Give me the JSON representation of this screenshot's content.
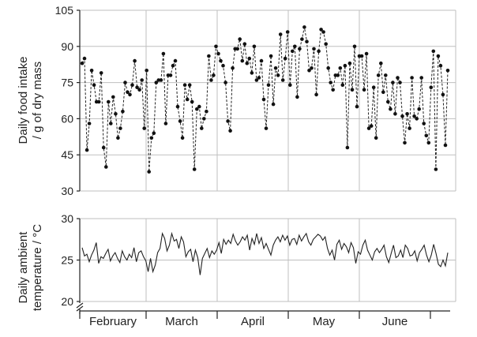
{
  "chart_data": [
    {
      "type": "line",
      "title": "",
      "ylabel_lines": [
        "Daily food intake",
        "/ g of dry mass"
      ],
      "ylim": [
        30,
        105
      ],
      "yticks": [
        30,
        45,
        60,
        75,
        90,
        105
      ],
      "grid": true,
      "series": [
        {
          "line_style": "dashed",
          "markers": "filled-circle",
          "values": [
            83,
            85,
            47,
            58,
            80,
            74,
            67,
            67,
            79,
            48,
            40,
            67,
            58,
            69,
            62,
            52,
            56,
            63,
            75,
            71,
            70,
            74,
            84,
            73,
            72,
            76,
            56,
            80,
            38,
            52,
            54,
            75,
            76,
            76,
            87,
            58,
            78,
            78,
            82,
            84,
            65,
            59,
            52,
            74,
            68,
            74,
            67,
            39,
            64,
            65,
            56,
            60,
            63,
            86,
            76,
            78,
            90,
            87,
            84,
            82,
            75,
            59,
            55,
            81,
            89,
            89,
            93,
            84,
            91,
            83,
            85,
            79,
            90,
            76,
            77,
            84,
            68,
            56,
            74,
            86,
            66,
            81,
            78,
            95,
            76,
            85,
            96,
            74,
            88,
            90,
            69,
            89,
            93,
            98,
            92,
            80,
            81,
            89,
            70,
            88,
            97,
            96,
            91,
            81,
            75,
            72,
            78,
            78,
            81,
            74,
            82,
            48,
            83,
            72,
            90,
            65,
            86,
            86,
            72,
            87,
            56,
            57,
            73,
            52,
            78,
            83,
            71,
            78,
            67,
            64,
            75,
            62,
            77,
            75,
            61,
            50,
            62,
            56,
            77,
            61,
            60,
            64,
            77,
            58,
            53,
            50,
            73,
            88,
            39,
            86,
            82,
            70,
            49,
            80
          ]
        }
      ]
    },
    {
      "type": "line",
      "title": "",
      "ylabel_lines": [
        "Daily ambient",
        "temperature  / °C"
      ],
      "ylim": [
        20,
        30
      ],
      "yticks": [
        20,
        25,
        30
      ],
      "axis_break": true,
      "grid": true,
      "series": [
        {
          "line_style": "solid",
          "markers": "none",
          "values": [
            26.5,
            25.5,
            25.7,
            24.8,
            25.6,
            26.2,
            27.1,
            24.6,
            25.4,
            25.2,
            25.8,
            26.3,
            24.9,
            25.5,
            25.9,
            25.2,
            24.7,
            26.1,
            25.4,
            25.0,
            25.7,
            25.3,
            26.5,
            24.8,
            25.9,
            26.1,
            25.4,
            24.9,
            23.6,
            25.2,
            23.6,
            24.4,
            25.9,
            26.4,
            28.2,
            27.6,
            26.1,
            26.8,
            28.2,
            27.3,
            27.5,
            26.4,
            27.8,
            27.2,
            25.4,
            26.0,
            26.3,
            24.8,
            26.2,
            25.3,
            23.2,
            25.2,
            25.8,
            26.4,
            25.3,
            26.1,
            25.7,
            26.2,
            27.1,
            25.8,
            27.5,
            26.9,
            27.4,
            27.0,
            28.1,
            27.3,
            26.8,
            27.2,
            27.8,
            27.4,
            28.0,
            26.2,
            27.6,
            26.9,
            28.2,
            27.0,
            27.7,
            26.4,
            27.0,
            26.3,
            25.6,
            26.8,
            27.4,
            27.8,
            27.2,
            28.0,
            27.4,
            27.9,
            26.8,
            27.5,
            27.6,
            26.9,
            28.0,
            27.3,
            27.8,
            28.2,
            27.2,
            26.8,
            27.5,
            27.8,
            28.1,
            27.9,
            27.4,
            27.8,
            26.4,
            25.6,
            26.2,
            25.0,
            26.9,
            27.4,
            26.3,
            27.0,
            26.6,
            25.9,
            27.1,
            26.5,
            24.6,
            26.0,
            25.7,
            26.8,
            27.4,
            26.2,
            25.6,
            25.0,
            26.0,
            26.4,
            25.9,
            26.3,
            26.8,
            25.4,
            24.7,
            25.8,
            26.8,
            25.3,
            25.5,
            26.2,
            25.3,
            26.8,
            26.4,
            25.5,
            25.6,
            26.1,
            24.9,
            25.9,
            26.3,
            26.8,
            25.6,
            24.8,
            25.6,
            26.9,
            25.8,
            24.5,
            24.2,
            25.0,
            24.3,
            25.9
          ]
        }
      ]
    }
  ],
  "x_axis": {
    "months": [
      "February",
      "March",
      "April",
      "May",
      "June"
    ]
  }
}
